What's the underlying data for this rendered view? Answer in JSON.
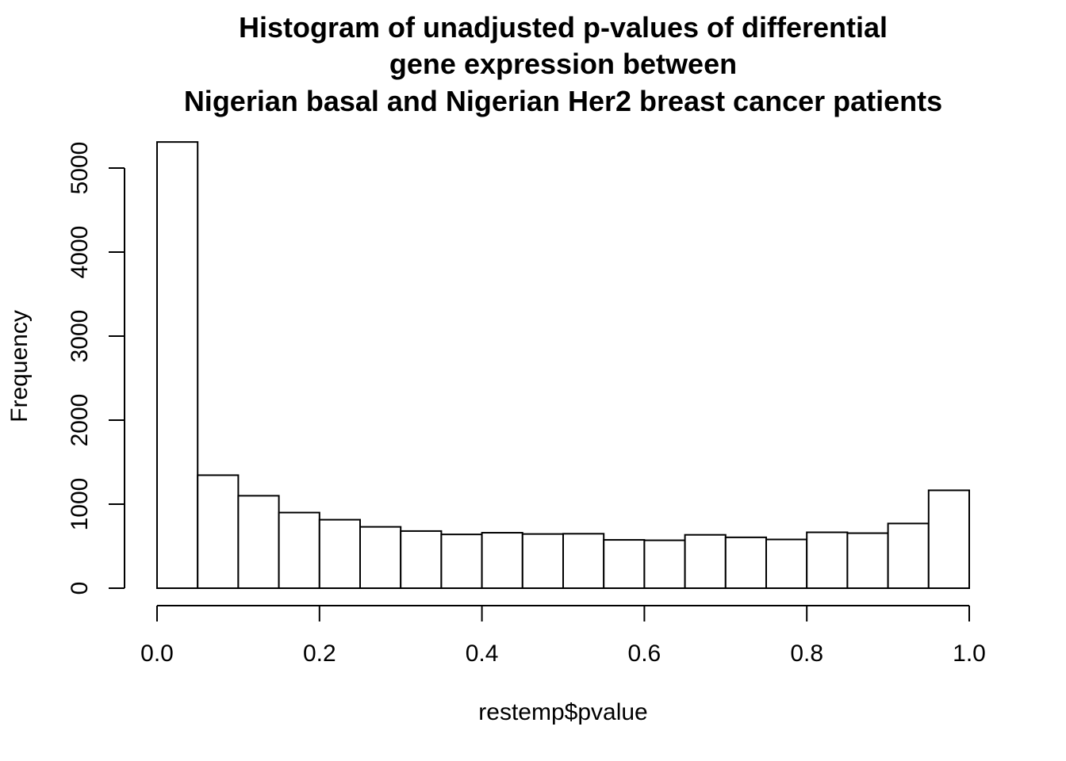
{
  "chart_data": {
    "type": "bar",
    "title_lines": [
      "Histogram of unadjusted p-values of differential",
      "gene expression between",
      "Nigerian basal and Nigerian Her2 breast cancer patients"
    ],
    "xlabel": "restemp$pvalue",
    "ylabel": "Frequency",
    "bin_edges": [
      0.0,
      0.05,
      0.1,
      0.15,
      0.2,
      0.25,
      0.3,
      0.35,
      0.4,
      0.45,
      0.5,
      0.55,
      0.6,
      0.65,
      0.7,
      0.75,
      0.8,
      0.85,
      0.9,
      0.95,
      1.0
    ],
    "values": [
      5310,
      1345,
      1100,
      900,
      815,
      730,
      680,
      640,
      660,
      645,
      648,
      575,
      570,
      635,
      605,
      580,
      665,
      655,
      770,
      1165
    ],
    "xlim": [
      0,
      1
    ],
    "ylim": [
      0,
      5310
    ],
    "xticks": [
      0.0,
      0.2,
      0.4,
      0.6,
      0.8,
      1.0
    ],
    "xtick_labels": [
      "0.0",
      "0.2",
      "0.4",
      "0.6",
      "0.8",
      "1.0"
    ],
    "yticks": [
      0,
      1000,
      2000,
      3000,
      4000,
      5000
    ],
    "ytick_labels": [
      "0",
      "1000",
      "2000",
      "3000",
      "4000",
      "5000"
    ],
    "grid": false
  }
}
